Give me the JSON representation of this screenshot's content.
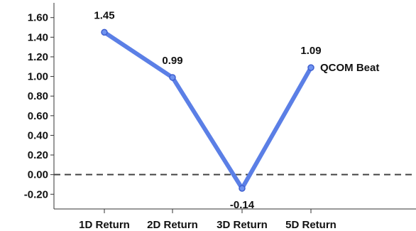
{
  "chart_data": {
    "type": "line",
    "categories": [
      "1D Return",
      "2D Return",
      "3D Return",
      "5D Return"
    ],
    "series": [
      {
        "name": "QCOM Beat",
        "values": [
          1.45,
          0.99,
          -0.14,
          1.09
        ],
        "labels": [
          "1.45",
          "0.99",
          "-0.14",
          "1.09"
        ]
      }
    ],
    "yticks": [
      "1.60",
      "1.40",
      "1.20",
      "1.00",
      "0.80",
      "0.60",
      "0.40",
      "0.20",
      "0.00",
      "-0.20"
    ],
    "ylim": [
      -0.35,
      1.75
    ],
    "reference_line": 0,
    "colors": {
      "line": "#5b7fe6",
      "marker_fill": "#6f93f0",
      "marker_stroke": "#3f5fcf",
      "reference": "#444444",
      "axis": "#333333"
    },
    "title": "",
    "xlabel": "",
    "ylabel": "",
    "grid": false
  }
}
